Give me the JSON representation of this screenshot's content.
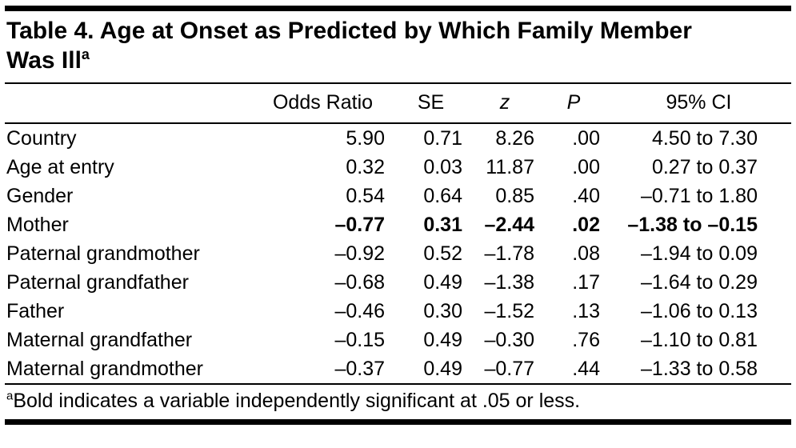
{
  "table": {
    "title": "Table 4. Age at Onset as Predicted by Which Family Member\nWas Ill",
    "title_note_marker": "a",
    "columns": [
      {
        "label": "",
        "italic": false
      },
      {
        "label": "Odds Ratio",
        "italic": false
      },
      {
        "label": "SE",
        "italic": false
      },
      {
        "label": "z",
        "italic": true
      },
      {
        "label": "P",
        "italic": true
      },
      {
        "label": "95% CI",
        "italic": false
      }
    ],
    "rows": [
      {
        "bold": false,
        "cells": [
          "Country",
          "5.90",
          "0.71",
          "8.26",
          ".00",
          "4.50 to 7.30"
        ]
      },
      {
        "bold": false,
        "cells": [
          "Age at entry",
          "0.32",
          "0.03",
          "11.87",
          ".00",
          "0.27 to 0.37"
        ]
      },
      {
        "bold": false,
        "cells": [
          "Gender",
          "0.54",
          "0.64",
          "0.85",
          ".40",
          "–0.71 to 1.80"
        ]
      },
      {
        "bold": true,
        "cells": [
          "Mother",
          "–0.77",
          "0.31",
          "–2.44",
          ".02",
          "–1.38 to –0.15"
        ]
      },
      {
        "bold": false,
        "cells": [
          "Paternal grandmother",
          "–0.92",
          "0.52",
          "–1.78",
          ".08",
          "–1.94 to 0.09"
        ]
      },
      {
        "bold": false,
        "cells": [
          "Paternal grandfather",
          "–0.68",
          "0.49",
          "–1.38",
          ".17",
          "–1.64 to 0.29"
        ]
      },
      {
        "bold": false,
        "cells": [
          "Father",
          "–0.46",
          "0.30",
          "–1.52",
          ".13",
          "–1.06 to 0.13"
        ]
      },
      {
        "bold": false,
        "cells": [
          "Maternal grandfather",
          "–0.15",
          "0.49",
          "–0.30",
          ".76",
          "–1.10 to 0.81"
        ]
      },
      {
        "bold": false,
        "cells": [
          "Maternal grandmother",
          "–0.37",
          "0.49",
          "–0.77",
          ".44",
          "–1.33 to 0.58"
        ]
      }
    ],
    "footnote_marker": "a",
    "footnote_text": "Bold indicates a variable independently significant at .05 or less.",
    "colors": {
      "background": "#ffffff",
      "text": "#000000",
      "rule": "#000000"
    }
  }
}
